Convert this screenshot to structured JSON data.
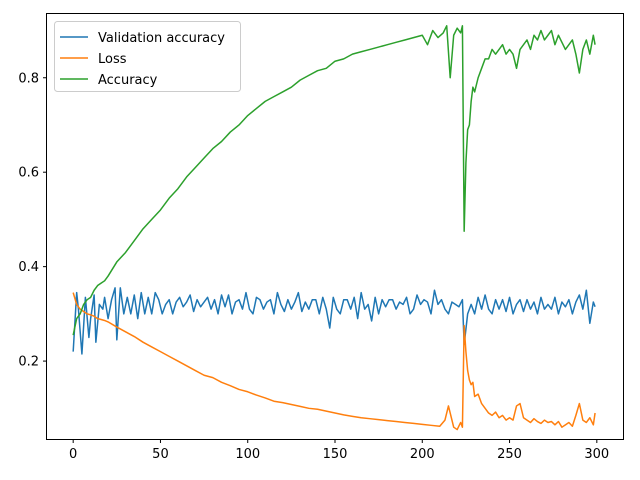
{
  "chart_data": {
    "type": "line",
    "title": "",
    "xlabel": "",
    "ylabel": "",
    "xlim": [
      -15,
      315
    ],
    "ylim": [
      0.035,
      0.935
    ],
    "xticks": [
      0,
      50,
      100,
      150,
      200,
      250,
      300
    ],
    "yticks": [
      0.2,
      0.4,
      0.6,
      0.8
    ],
    "grid": false,
    "legend_position": "top-left",
    "series": [
      {
        "name": "Validation accuracy",
        "color": "#1f77b4",
        "x": [
          0,
          2,
          3,
          5,
          7,
          9,
          10,
          12,
          13,
          15,
          17,
          18,
          20,
          22,
          24,
          25,
          27,
          29,
          31,
          33,
          35,
          37,
          39,
          41,
          43,
          45,
          47,
          49,
          51,
          53,
          55,
          57,
          59,
          61,
          63,
          65,
          67,
          69,
          71,
          73,
          75,
          77,
          79,
          81,
          83,
          85,
          87,
          89,
          91,
          93,
          95,
          97,
          99,
          101,
          103,
          105,
          107,
          109,
          111,
          113,
          115,
          117,
          119,
          121,
          123,
          125,
          127,
          129,
          131,
          133,
          135,
          137,
          139,
          141,
          143,
          145,
          147,
          149,
          151,
          153,
          155,
          157,
          159,
          161,
          163,
          165,
          167,
          169,
          171,
          173,
          175,
          177,
          179,
          181,
          183,
          185,
          187,
          189,
          191,
          193,
          195,
          197,
          199,
          201,
          203,
          205,
          207,
          209,
          211,
          213,
          215,
          217,
          219,
          221,
          223,
          224,
          226,
          228,
          230,
          232,
          234,
          236,
          238,
          240,
          242,
          244,
          246,
          248,
          250,
          252,
          254,
          256,
          258,
          260,
          262,
          264,
          266,
          268,
          270,
          272,
          274,
          276,
          278,
          280,
          282,
          284,
          286,
          288,
          290,
          292,
          294,
          296,
          298,
          299
        ],
        "y": [
          0.22,
          0.345,
          0.31,
          0.215,
          0.335,
          0.25,
          0.29,
          0.34,
          0.24,
          0.32,
          0.31,
          0.335,
          0.29,
          0.33,
          0.355,
          0.245,
          0.355,
          0.3,
          0.335,
          0.3,
          0.34,
          0.29,
          0.345,
          0.3,
          0.335,
          0.3,
          0.345,
          0.33,
          0.3,
          0.32,
          0.33,
          0.3,
          0.325,
          0.335,
          0.315,
          0.325,
          0.34,
          0.305,
          0.33,
          0.315,
          0.325,
          0.335,
          0.31,
          0.33,
          0.3,
          0.34,
          0.315,
          0.34,
          0.3,
          0.325,
          0.33,
          0.31,
          0.345,
          0.31,
          0.3,
          0.335,
          0.33,
          0.31,
          0.325,
          0.33,
          0.3,
          0.345,
          0.32,
          0.305,
          0.33,
          0.31,
          0.325,
          0.345,
          0.305,
          0.325,
          0.31,
          0.33,
          0.33,
          0.3,
          0.335,
          0.31,
          0.27,
          0.335,
          0.31,
          0.3,
          0.33,
          0.33,
          0.31,
          0.335,
          0.29,
          0.345,
          0.31,
          0.32,
          0.285,
          0.335,
          0.3,
          0.33,
          0.315,
          0.33,
          0.33,
          0.31,
          0.325,
          0.32,
          0.335,
          0.3,
          0.31,
          0.34,
          0.32,
          0.33,
          0.325,
          0.3,
          0.35,
          0.32,
          0.33,
          0.31,
          0.3,
          0.325,
          0.32,
          0.315,
          0.33,
          0.235,
          0.3,
          0.32,
          0.3,
          0.335,
          0.31,
          0.34,
          0.31,
          0.3,
          0.33,
          0.31,
          0.33,
          0.305,
          0.335,
          0.3,
          0.32,
          0.33,
          0.305,
          0.33,
          0.31,
          0.325,
          0.3,
          0.335,
          0.31,
          0.32,
          0.31,
          0.335,
          0.3,
          0.325,
          0.315,
          0.33,
          0.3,
          0.325,
          0.34,
          0.31,
          0.35,
          0.28,
          0.325,
          0.315
        ]
      },
      {
        "name": "Loss",
        "color": "#ff7f0e",
        "x": [
          0,
          2,
          4,
          6,
          8,
          10,
          12,
          14,
          16,
          18,
          20,
          25,
          30,
          35,
          40,
          45,
          50,
          55,
          60,
          65,
          70,
          75,
          80,
          85,
          90,
          95,
          100,
          105,
          110,
          115,
          120,
          125,
          130,
          135,
          140,
          145,
          150,
          155,
          160,
          165,
          170,
          175,
          180,
          185,
          190,
          195,
          200,
          205,
          210,
          213,
          215,
          218,
          220,
          222,
          223,
          224,
          225,
          226,
          227,
          228,
          229,
          230,
          232,
          234,
          236,
          238,
          240,
          242,
          244,
          246,
          248,
          250,
          252,
          254,
          256,
          258,
          260,
          262,
          264,
          266,
          268,
          270,
          272,
          274,
          276,
          278,
          280,
          282,
          284,
          286,
          288,
          290,
          292,
          294,
          296,
          298,
          299
        ],
        "y": [
          0.345,
          0.32,
          0.31,
          0.305,
          0.3,
          0.298,
          0.295,
          0.29,
          0.288,
          0.286,
          0.283,
          0.272,
          0.262,
          0.252,
          0.24,
          0.23,
          0.22,
          0.21,
          0.2,
          0.19,
          0.18,
          0.17,
          0.165,
          0.155,
          0.148,
          0.14,
          0.135,
          0.128,
          0.122,
          0.115,
          0.112,
          0.108,
          0.104,
          0.1,
          0.098,
          0.094,
          0.09,
          0.086,
          0.083,
          0.08,
          0.078,
          0.076,
          0.074,
          0.072,
          0.07,
          0.068,
          0.066,
          0.064,
          0.062,
          0.075,
          0.105,
          0.06,
          0.055,
          0.07,
          0.06,
          0.275,
          0.22,
          0.18,
          0.16,
          0.15,
          0.155,
          0.125,
          0.13,
          0.11,
          0.1,
          0.09,
          0.085,
          0.092,
          0.08,
          0.085,
          0.075,
          0.08,
          0.075,
          0.105,
          0.11,
          0.08,
          0.075,
          0.07,
          0.078,
          0.072,
          0.068,
          0.075,
          0.07,
          0.072,
          0.065,
          0.072,
          0.06,
          0.065,
          0.07,
          0.062,
          0.085,
          0.11,
          0.075,
          0.07,
          0.08,
          0.065,
          0.09
        ]
      },
      {
        "name": "Accuracy",
        "color": "#2ca02c",
        "x": [
          0,
          2,
          4,
          6,
          8,
          10,
          12,
          14,
          16,
          18,
          20,
          25,
          30,
          35,
          40,
          45,
          50,
          55,
          60,
          65,
          70,
          75,
          80,
          85,
          90,
          95,
          100,
          105,
          110,
          115,
          120,
          125,
          130,
          135,
          140,
          145,
          150,
          155,
          160,
          165,
          170,
          175,
          180,
          185,
          190,
          195,
          200,
          203,
          206,
          209,
          212,
          214,
          216,
          218,
          220,
          222,
          223,
          224,
          225,
          226,
          227,
          228,
          229,
          230,
          232,
          234,
          236,
          238,
          240,
          242,
          244,
          246,
          248,
          250,
          252,
          254,
          256,
          258,
          260,
          262,
          264,
          266,
          268,
          270,
          272,
          274,
          276,
          278,
          280,
          282,
          284,
          286,
          288,
          290,
          292,
          294,
          296,
          298,
          299
        ],
        "y": [
          0.255,
          0.29,
          0.3,
          0.32,
          0.33,
          0.335,
          0.35,
          0.36,
          0.365,
          0.37,
          0.38,
          0.41,
          0.43,
          0.455,
          0.48,
          0.5,
          0.52,
          0.545,
          0.565,
          0.59,
          0.61,
          0.63,
          0.65,
          0.665,
          0.685,
          0.7,
          0.72,
          0.735,
          0.75,
          0.76,
          0.77,
          0.78,
          0.795,
          0.805,
          0.815,
          0.82,
          0.835,
          0.84,
          0.85,
          0.855,
          0.86,
          0.865,
          0.87,
          0.875,
          0.88,
          0.885,
          0.89,
          0.87,
          0.9,
          0.885,
          0.895,
          0.91,
          0.8,
          0.89,
          0.905,
          0.895,
          0.91,
          0.475,
          0.62,
          0.69,
          0.7,
          0.75,
          0.78,
          0.77,
          0.8,
          0.82,
          0.84,
          0.84,
          0.86,
          0.85,
          0.86,
          0.87,
          0.85,
          0.86,
          0.85,
          0.82,
          0.86,
          0.87,
          0.88,
          0.86,
          0.89,
          0.88,
          0.9,
          0.88,
          0.89,
          0.9,
          0.87,
          0.89,
          0.875,
          0.86,
          0.87,
          0.88,
          0.85,
          0.81,
          0.86,
          0.88,
          0.85,
          0.89,
          0.87
        ]
      }
    ]
  }
}
